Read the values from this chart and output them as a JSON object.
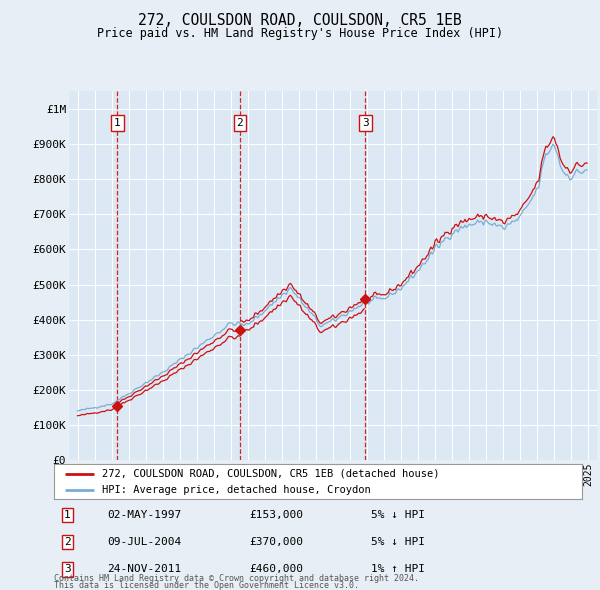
{
  "title": "272, COULSDON ROAD, COULSDON, CR5 1EB",
  "subtitle": "Price paid vs. HM Land Registry's House Price Index (HPI)",
  "background_color": "#e8eef5",
  "plot_bg_color": "#dce8f4",
  "legend_line1": "272, COULSDON ROAD, COULSDON, CR5 1EB (detached house)",
  "legend_line2": "HPI: Average price, detached house, Croydon",
  "footer1": "Contains HM Land Registry data © Crown copyright and database right 2024.",
  "footer2": "This data is licensed under the Open Government Licence v3.0.",
  "hpi_color": "#7aadd4",
  "price_color": "#cc1111",
  "dashed_line_color": "#cc1111",
  "yticks": [
    0,
    100000,
    200000,
    300000,
    400000,
    500000,
    600000,
    700000,
    800000,
    900000,
    1000000
  ],
  "ylabels": [
    "£0",
    "£100K",
    "£200K",
    "£300K",
    "£400K",
    "£500K",
    "£600K",
    "£700K",
    "£800K",
    "£900K",
    "£1M"
  ],
  "xmin": 1994.5,
  "xmax": 2025.5,
  "ymin": 0,
  "ymax": 1050000,
  "s1_year": 1997.34,
  "s1_price": 153000,
  "s2_year": 2004.52,
  "s2_price": 370000,
  "s3_year": 2011.9,
  "s3_price": 460000,
  "sale_labels": [
    "1",
    "2",
    "3"
  ],
  "sale_dates": [
    "02-MAY-1997",
    "09-JUL-2004",
    "24-NOV-2011"
  ],
  "sale_prices_str": [
    "£153,000",
    "£370,000",
    "£460,000"
  ],
  "sale_pcts": [
    "5% ↓ HPI",
    "5% ↓ HPI",
    "1% ↑ HPI"
  ]
}
